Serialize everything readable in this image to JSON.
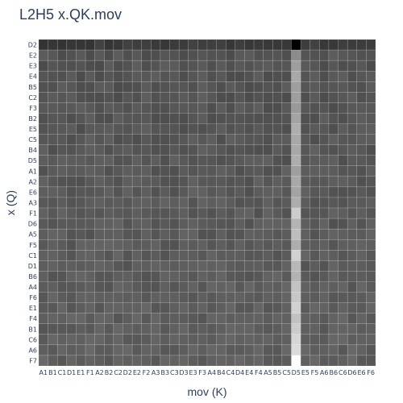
{
  "chart_data": {
    "type": "heatmap",
    "title": "L2H5 x.QK.mov",
    "xlabel": "mov (K)",
    "ylabel": "x (Q)",
    "x_categories": [
      "A1",
      "B1",
      "C1",
      "D1",
      "E1",
      "F1",
      "A2",
      "B2",
      "C2",
      "D2",
      "E2",
      "F2",
      "A3",
      "B3",
      "C3",
      "D3",
      "E3",
      "F3",
      "A4",
      "B4",
      "C4",
      "D4",
      "E4",
      "F4",
      "A5",
      "B5",
      "C5",
      "D5",
      "E5",
      "F5",
      "A6",
      "B6",
      "C6",
      "D6",
      "E6",
      "F6"
    ],
    "y_categories": [
      "D2",
      "E2",
      "E3",
      "E4",
      "B5",
      "C2",
      "F3",
      "B2",
      "E5",
      "C5",
      "B4",
      "D5",
      "A1",
      "A2",
      "E6",
      "A3",
      "F1",
      "D6",
      "A5",
      "F5",
      "C1",
      "D1",
      "B6",
      "A4",
      "F6",
      "E1",
      "F4",
      "B1",
      "C6",
      "A6",
      "F7"
    ],
    "highlight_column": "D5",
    "highlight_values": [
      0.0,
      0.55,
      0.62,
      0.66,
      0.62,
      0.62,
      0.6,
      0.64,
      0.68,
      0.66,
      0.66,
      0.68,
      0.62,
      0.66,
      0.64,
      0.68,
      0.8,
      0.7,
      0.74,
      0.68,
      0.82,
      0.72,
      0.7,
      0.76,
      0.78,
      0.82,
      0.76,
      0.8,
      0.84,
      0.86,
      1.0
    ],
    "colorscale": [
      "#000000",
      "#ffffff"
    ]
  }
}
